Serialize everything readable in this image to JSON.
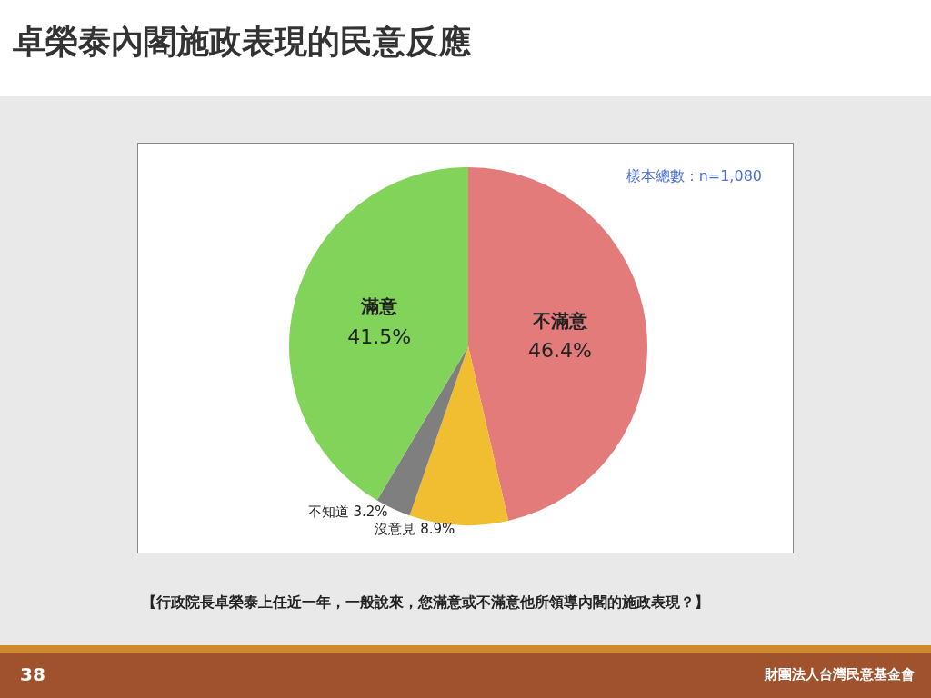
{
  "chart_data": {
    "type": "pie",
    "title": "卓榮泰內閣施政表現的民意反應",
    "categories": [
      "不滿意",
      "沒意見",
      "不知道",
      "滿意"
    ],
    "values": [
      46.4,
      8.9,
      3.2,
      41.5
    ],
    "colors": [
      "#e47b7b",
      "#f0be30",
      "#7f7f7f",
      "#82d35a"
    ],
    "value_labels": [
      "46.4%",
      "8.9%",
      "3.2%",
      "41.5%"
    ],
    "legend": false,
    "annotations": [
      "樣本總數：n=1,080",
      "【行政院長卓榮泰上任近一年，一般說來，您滿意或不滿意他所領導內閣的施政表現？】",
      "38",
      "財團法人台灣民意基金會"
    ]
  }
}
